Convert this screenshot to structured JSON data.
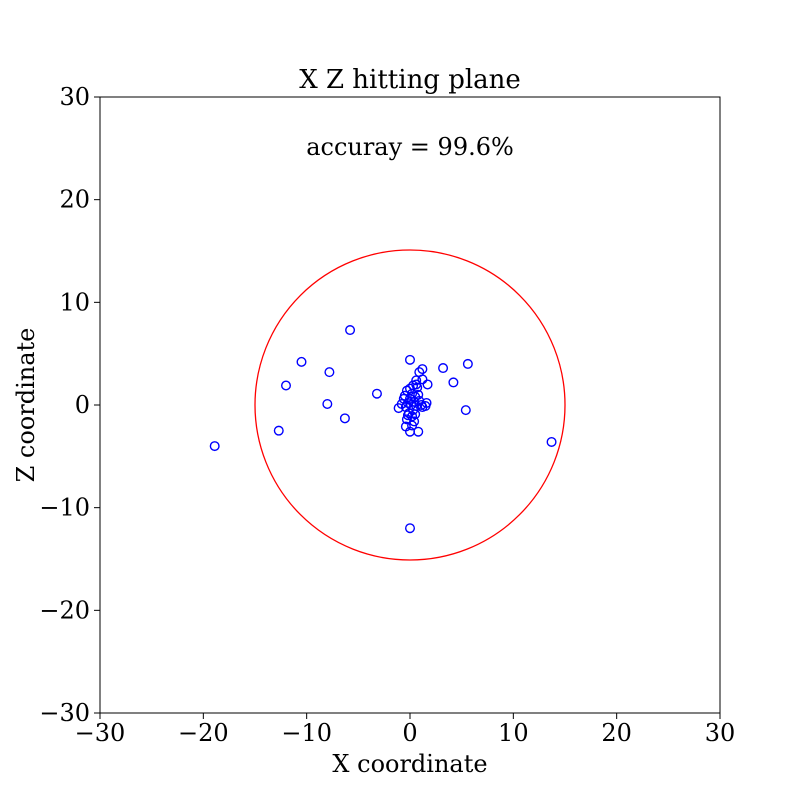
{
  "chart_data": {
    "type": "scatter",
    "title": "X Z hitting plane",
    "annotation": "accuray = 99.6%",
    "xlabel": "X coordinate",
    "ylabel": "Z coordinate",
    "xlim": [
      -30,
      30
    ],
    "ylim": [
      -30,
      30
    ],
    "xticks": [
      "−30",
      "−20",
      "−10",
      "0",
      "10",
      "20",
      "30"
    ],
    "yticks": [
      "−30",
      "−20",
      "−10",
      "0",
      "10",
      "20",
      "30"
    ],
    "xtick_values": [
      -30,
      -20,
      -10,
      0,
      10,
      20,
      30
    ],
    "ytick_values": [
      -30,
      -20,
      -10,
      0,
      10,
      20,
      30
    ],
    "grid": false,
    "circle": {
      "cx": 0,
      "cz": 0,
      "r": 15,
      "color": "#ff0000"
    },
    "marker_color": "#0000ff",
    "points": [
      [
        -18.9,
        -4.0
      ],
      [
        -12.7,
        -2.5
      ],
      [
        -12.0,
        1.9
      ],
      [
        -10.5,
        4.2
      ],
      [
        -7.8,
        3.2
      ],
      [
        -8.0,
        0.1
      ],
      [
        -6.3,
        -1.3
      ],
      [
        -5.8,
        7.3
      ],
      [
        -3.2,
        1.1
      ],
      [
        0.0,
        -12.0
      ],
      [
        13.7,
        -3.6
      ],
      [
        5.6,
        4.0
      ],
      [
        5.4,
        -0.5
      ],
      [
        4.2,
        2.2
      ],
      [
        3.2,
        3.6
      ],
      [
        0.0,
        4.4
      ],
      [
        1.2,
        3.5
      ],
      [
        0.9,
        3.2
      ],
      [
        1.7,
        2.0
      ],
      [
        1.2,
        2.5
      ],
      [
        0.6,
        2.4
      ],
      [
        0.3,
        1.9
      ],
      [
        0.7,
        1.7
      ],
      [
        0.2,
        1.1
      ],
      [
        0.5,
        0.8
      ],
      [
        -0.3,
        1.4
      ],
      [
        0.0,
        0.6
      ],
      [
        0.4,
        0.3
      ],
      [
        -0.2,
        0.2
      ],
      [
        0.1,
        0.0
      ],
      [
        0.6,
        -0.1
      ],
      [
        -0.4,
        -0.2
      ],
      [
        0.3,
        -0.5
      ],
      [
        -0.1,
        -0.8
      ],
      [
        0.2,
        -1.1
      ],
      [
        -0.3,
        -1.4
      ],
      [
        0.4,
        -1.6
      ],
      [
        0.2,
        -2.0
      ],
      [
        -0.4,
        -2.1
      ],
      [
        0.0,
        -2.6
      ],
      [
        0.8,
        -2.6
      ],
      [
        1.5,
        -0.1
      ],
      [
        1.6,
        0.2
      ],
      [
        1.2,
        -0.2
      ],
      [
        0.9,
        0.4
      ],
      [
        -1.1,
        -0.3
      ],
      [
        -0.8,
        0.1
      ],
      [
        -0.6,
        0.6
      ],
      [
        0.8,
        1.0
      ],
      [
        1.1,
        0.0
      ],
      [
        0.0,
        1.6
      ],
      [
        0.5,
        -0.9
      ],
      [
        -0.2,
        -1.0
      ],
      [
        0.6,
        2.0
      ],
      [
        -0.5,
        0.9
      ]
    ]
  }
}
